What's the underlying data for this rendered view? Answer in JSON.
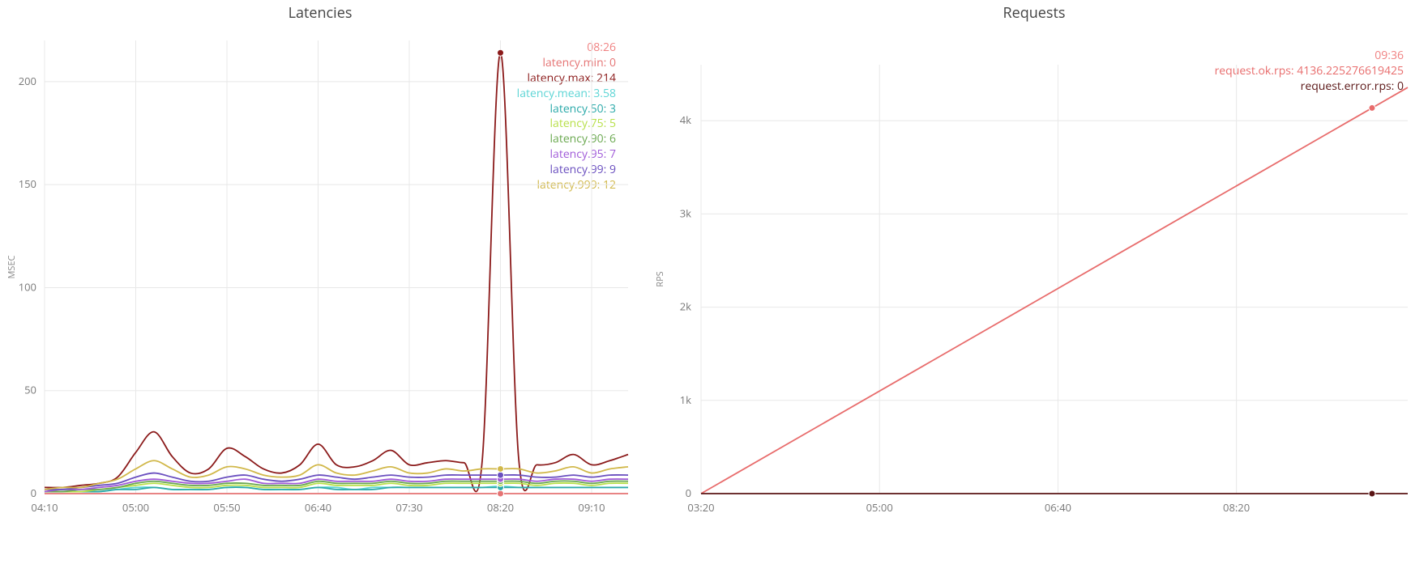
{
  "latencies_chart": {
    "title": "Latencies",
    "type": "line",
    "ylabel": "MSEC",
    "background_color": "#ffffff",
    "grid_color": "#e8e8e8",
    "axis_text_color": "#777777",
    "title_color": "#444444",
    "title_fontsize": 18,
    "axis_fontsize": 13,
    "label_fontsize": 11,
    "line_width": 1.8,
    "marker_radius": 4,
    "ylim": [
      0,
      220
    ],
    "yticks": [
      0,
      50,
      100,
      150,
      200
    ],
    "x_categories": [
      "04:10",
      "05:00",
      "05:50",
      "06:40",
      "07:30",
      "08:20",
      "09:10"
    ],
    "hover_index": 25,
    "hover_time": "08:26",
    "hover_time_color": "#f08080",
    "legend_fontsize": 14,
    "series": [
      {
        "key": "latency.min",
        "label": "latency.min: 0",
        "color": "#e57373",
        "values": [
          0,
          0,
          0,
          0,
          0,
          0,
          0,
          0,
          0,
          0,
          0,
          0,
          0,
          0,
          0,
          0,
          0,
          0,
          0,
          0,
          0,
          0,
          0,
          0,
          0,
          0,
          0,
          0,
          0,
          0,
          0,
          0,
          0
        ]
      },
      {
        "key": "latency.max",
        "label": "latency.max: 214",
        "color": "#8b1a1a",
        "values": [
          3,
          3,
          4,
          5,
          8,
          20,
          30,
          18,
          10,
          12,
          22,
          18,
          12,
          10,
          14,
          24,
          14,
          13,
          16,
          21,
          14,
          15,
          16,
          15,
          16,
          214,
          17,
          14,
          15,
          19,
          14,
          16,
          19
        ]
      },
      {
        "key": "latency.mean",
        "label": "latency.mean: 3.58",
        "color": "#5dd5d5",
        "values": [
          1,
          1,
          1,
          1,
          2,
          3,
          3,
          2,
          2,
          2,
          3,
          3,
          2,
          2,
          2,
          3,
          3,
          2,
          3,
          3,
          3,
          3,
          3,
          3,
          3,
          3.58,
          3,
          3,
          3,
          3,
          3,
          3,
          3
        ]
      },
      {
        "key": "latency.50",
        "label": "latency.50: 3",
        "color": "#2aa9a9",
        "values": [
          1,
          1,
          1,
          1,
          2,
          2,
          3,
          2,
          2,
          2,
          3,
          3,
          2,
          2,
          2,
          3,
          2,
          2,
          2,
          3,
          3,
          3,
          3,
          3,
          3,
          3,
          3,
          3,
          3,
          3,
          3,
          3,
          3
        ]
      },
      {
        "key": "latency.75",
        "label": "latency.75: 5",
        "color": "#b8e04a",
        "values": [
          1,
          1,
          1,
          2,
          3,
          4,
          5,
          4,
          3,
          3,
          4,
          4,
          3,
          3,
          3,
          5,
          4,
          4,
          4,
          5,
          4,
          4,
          5,
          5,
          5,
          5,
          5,
          4,
          5,
          5,
          4,
          5,
          5
        ]
      },
      {
        "key": "latency.90",
        "label": "latency.90: 6",
        "color": "#6aa84f",
        "values": [
          1,
          1,
          2,
          2,
          3,
          5,
          6,
          5,
          4,
          4,
          5,
          5,
          4,
          4,
          4,
          6,
          5,
          5,
          5,
          6,
          5,
          5,
          6,
          6,
          6,
          6,
          6,
          5,
          6,
          6,
          5,
          6,
          6
        ]
      },
      {
        "key": "latency.95",
        "label": "latency.95: 7",
        "color": "#a05bd8",
        "values": [
          1,
          2,
          2,
          3,
          4,
          6,
          7,
          6,
          5,
          5,
          6,
          7,
          5,
          5,
          5,
          7,
          6,
          6,
          6,
          7,
          6,
          6,
          7,
          7,
          7,
          7,
          7,
          6,
          7,
          7,
          6,
          7,
          7
        ]
      },
      {
        "key": "latency.99",
        "label": "latency.99: 9",
        "color": "#6a4fbf",
        "values": [
          2,
          2,
          3,
          4,
          5,
          8,
          10,
          8,
          6,
          6,
          8,
          9,
          7,
          6,
          7,
          9,
          8,
          7,
          8,
          9,
          8,
          8,
          9,
          9,
          9,
          9,
          9,
          8,
          8,
          9,
          8,
          9,
          9
        ]
      },
      {
        "key": "latency.999",
        "label": "latency.999: 12",
        "color": "#d1b84a",
        "values": [
          2,
          3,
          3,
          5,
          7,
          12,
          16,
          12,
          8,
          9,
          13,
          12,
          9,
          8,
          9,
          14,
          10,
          9,
          11,
          13,
          10,
          10,
          12,
          11,
          12,
          12,
          12,
          10,
          11,
          13,
          10,
          12,
          13
        ]
      }
    ]
  },
  "requests_chart": {
    "title": "Requests",
    "type": "line",
    "ylabel": "RPS",
    "background_color": "#ffffff",
    "grid_color": "#e8e8e8",
    "axis_text_color": "#777777",
    "title_color": "#444444",
    "title_fontsize": 18,
    "axis_fontsize": 13,
    "label_fontsize": 11,
    "line_width": 1.8,
    "marker_radius": 4,
    "ylim": [
      0,
      4600
    ],
    "yticks": [
      0,
      1000,
      2000,
      3000,
      4000
    ],
    "ytick_labels": [
      "0",
      "1k",
      "2k",
      "3k",
      "4k"
    ],
    "x_categories": [
      "03:20",
      "05:00",
      "06:40",
      "08:20"
    ],
    "x_domain_minutes": [
      200,
      596
    ],
    "hover_minute": 576,
    "hover_time": "09:36",
    "hover_time_color": "#f08080",
    "legend_fontsize": 14,
    "series": [
      {
        "key": "request.ok.rps",
        "label": "request.ok.rps: 4136.225276619425",
        "color": "#e86c6c",
        "points": [
          {
            "x_min": 200,
            "y": 0
          },
          {
            "x_min": 576,
            "y": 4136.225276619425
          },
          {
            "x_min": 596,
            "y": 4356.23
          }
        ],
        "hover_value": 4136.225276619425
      },
      {
        "key": "request.error.rps",
        "label": "request.error.rps: 0",
        "color": "#5a1515",
        "points": [
          {
            "x_min": 200,
            "y": 0
          },
          {
            "x_min": 596,
            "y": 0
          }
        ],
        "hover_value": 0
      }
    ]
  }
}
